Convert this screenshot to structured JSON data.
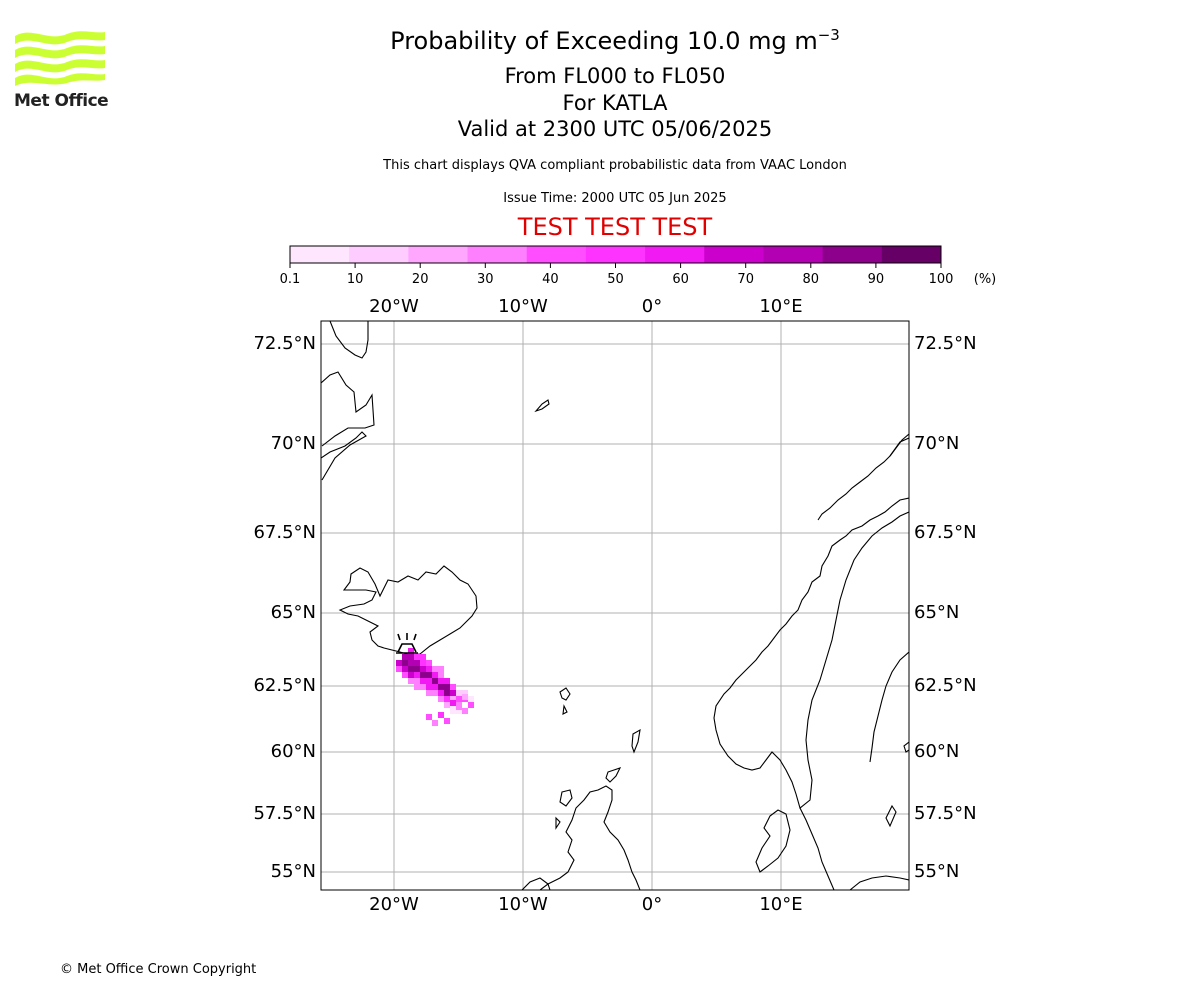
{
  "header": {
    "title_main": "Probability of Exceeding 10.0 mg m",
    "title_superscript": "−3",
    "level_range": "From FL000 to FL050",
    "volcano_line": "For KATLA",
    "valid_line": "Valid at 2300 UTC 05/06/2025",
    "disclaimer": "This chart displays QVA compliant probabilistic data from VAAC London",
    "issue_time": "Issue Time: 2000 UTC 05 Jun 2025",
    "test_banner": "TEST TEST TEST"
  },
  "logo": {
    "text": "Met Office",
    "color": "#ccff33"
  },
  "colorbar": {
    "ticks": [
      "0.1",
      "10",
      "20",
      "30",
      "40",
      "50",
      "60",
      "70",
      "80",
      "90",
      "100"
    ],
    "unit": "(%)",
    "colors": [
      "#ffe6ff",
      "#ffccff",
      "#ffa6ff",
      "#ff80ff",
      "#ff4dff",
      "#ff33ff",
      "#f21af2",
      "#cc00cc",
      "#b300b3",
      "#8c008c",
      "#660066"
    ]
  },
  "map": {
    "lon_labels": [
      "20°W",
      "10°W",
      "0°",
      "10°E"
    ],
    "lat_labels": [
      "72.5°N",
      "70°N",
      "67.5°N",
      "65°N",
      "62.5°N",
      "60°N",
      "57.5°N",
      "55°N"
    ]
  },
  "footer": {
    "copyright": "© Met Office Crown Copyright"
  }
}
